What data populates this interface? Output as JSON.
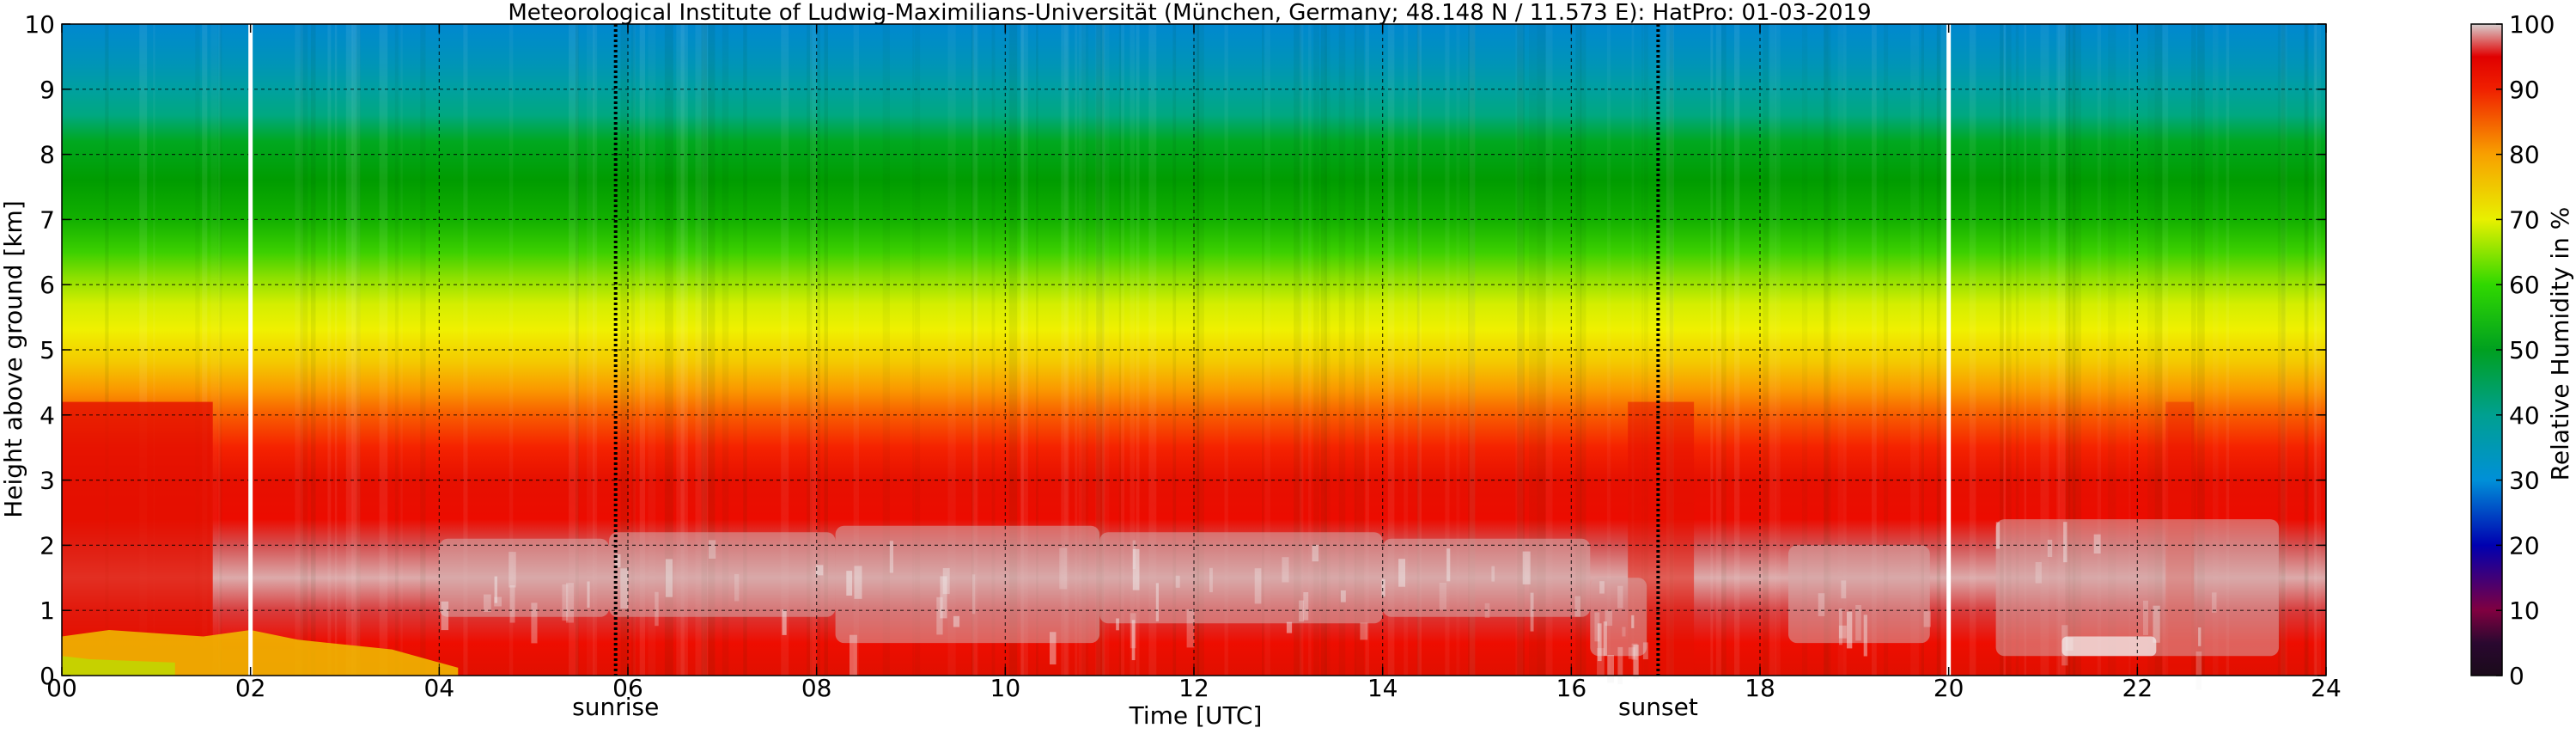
{
  "chart_data": {
    "type": "heatmap",
    "title": "Meteorological Institute of Ludwig-Maximilians-Universität (München, Germany; 48.148 N / 11.573 E):    HatPro: 01-03-2019",
    "xlabel": "Time [UTC]",
    "ylabel": "Height above ground [km]",
    "xlim": [
      0,
      24
    ],
    "ylim": [
      0,
      10
    ],
    "x_ticks": [
      "00",
      "02",
      "04",
      "06",
      "08",
      "10",
      "12",
      "14",
      "16",
      "18",
      "20",
      "22",
      "24"
    ],
    "y_ticks": [
      "0",
      "1",
      "2",
      "3",
      "4",
      "5",
      "6",
      "7",
      "8",
      "9",
      "10"
    ],
    "grid": true,
    "colorbar": {
      "label": "Relative Humidity in %",
      "range": [
        0,
        100
      ],
      "ticks": [
        "0",
        "10",
        "20",
        "30",
        "40",
        "50",
        "60",
        "70",
        "80",
        "90",
        "100"
      ]
    },
    "annotations": [
      {
        "label": "sunrise",
        "x": 5.87
      },
      {
        "label": "sunset",
        "x": 16.92
      }
    ],
    "white_vertical_lines_x": [
      2.0,
      20.0
    ],
    "humidity_profile_km_pct": [
      {
        "height_km": 0.2,
        "rh": 93
      },
      {
        "height_km": 1.0,
        "rh": 92
      },
      {
        "height_km": 1.5,
        "rh": 98
      },
      {
        "height_km": 2.5,
        "rh": 90
      },
      {
        "height_km": 3.5,
        "rh": 89
      },
      {
        "height_km": 4.1,
        "rh": 81
      },
      {
        "height_km": 4.5,
        "rh": 76
      },
      {
        "height_km": 5.3,
        "rh": 68
      },
      {
        "height_km": 6.0,
        "rh": 63
      },
      {
        "height_km": 6.5,
        "rh": 57
      },
      {
        "height_km": 7.5,
        "rh": 50
      },
      {
        "height_km": 8.5,
        "rh": 47
      },
      {
        "height_km": 9.0,
        "rh": 42
      },
      {
        "height_km": 9.5,
        "rh": 38
      },
      {
        "height_km": 10.0,
        "rh": 37
      }
    ]
  }
}
